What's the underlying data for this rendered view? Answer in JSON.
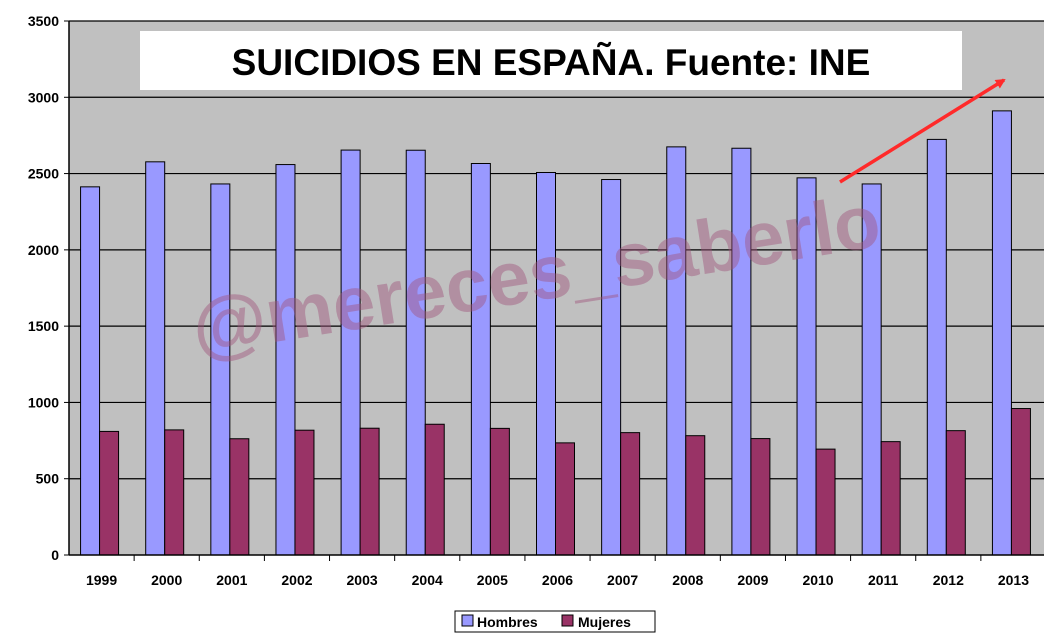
{
  "chart_data": {
    "type": "bar",
    "title": "SUICIDIOS EN ESPAÑA. Fuente: INE",
    "watermark": "@mereces_saberlo",
    "categories": [
      "1999",
      "2000",
      "2001",
      "2002",
      "2003",
      "2004",
      "2005",
      "2006",
      "2007",
      "2008",
      "2009",
      "2010",
      "2011",
      "2012",
      "2013"
    ],
    "series": [
      {
        "name": "Hombres",
        "color": "#9999ff",
        "values": [
          2413,
          2577,
          2432,
          2559,
          2654,
          2653,
          2566,
          2507,
          2461,
          2675,
          2666,
          2472,
          2432,
          2724,
          2911
        ]
      },
      {
        "name": "Mujeres",
        "color": "#993366",
        "values": [
          810,
          820,
          762,
          818,
          831,
          857,
          830,
          735,
          802,
          782,
          763,
          694,
          743,
          815,
          960
        ]
      }
    ],
    "yticks": [
      "0",
      "500",
      "1000",
      "1500",
      "2000",
      "2500",
      "3000",
      "3500"
    ],
    "ylim": [
      0,
      3500
    ],
    "grid": true,
    "legend": "bottom-center",
    "background_color": "#c0c0c0",
    "annotation": "red arrow pointing up-right"
  }
}
